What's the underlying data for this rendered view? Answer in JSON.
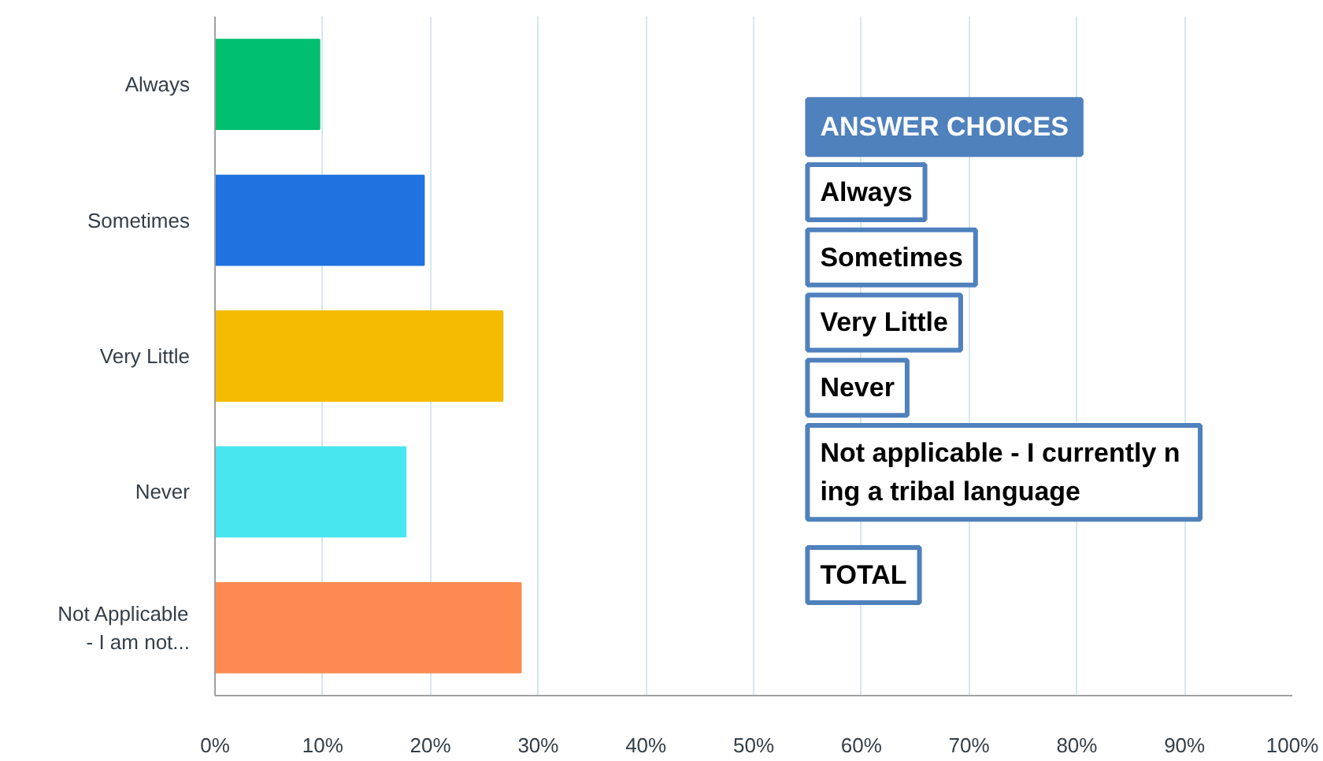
{
  "chart_data": {
    "type": "bar",
    "orientation": "horizontal",
    "categories": [
      "Always",
      "Sometimes",
      "Very Little",
      "Never",
      "Not Applicable\n- I am not..."
    ],
    "values": [
      9.7,
      19.4,
      26.7,
      17.7,
      28.4
    ],
    "colors": [
      "#00bf6f",
      "#1f72e0",
      "#f5bb00",
      "#48e6ef",
      "#fd8a50"
    ],
    "xlim": [
      0,
      100
    ],
    "xticks": [
      {
        "value": 0,
        "label": "0%"
      },
      {
        "value": 10,
        "label": "10%"
      },
      {
        "value": 20,
        "label": "20%"
      },
      {
        "value": 30,
        "label": "30%"
      },
      {
        "value": 40,
        "label": "40%"
      },
      {
        "value": 50,
        "label": "50%"
      },
      {
        "value": 60,
        "label": "60%"
      },
      {
        "value": 70,
        "label": "70%"
      },
      {
        "value": 80,
        "label": "80%"
      },
      {
        "value": 90,
        "label": "90%"
      },
      {
        "value": 100,
        "label": "100%"
      }
    ],
    "grid": "x",
    "annotations": [
      "ANSWER CHOICES",
      "Always",
      "Sometimes",
      "Very Little",
      "Never",
      "Not applicable -  I currently n\ning a tribal language",
      "TOTAL"
    ]
  }
}
